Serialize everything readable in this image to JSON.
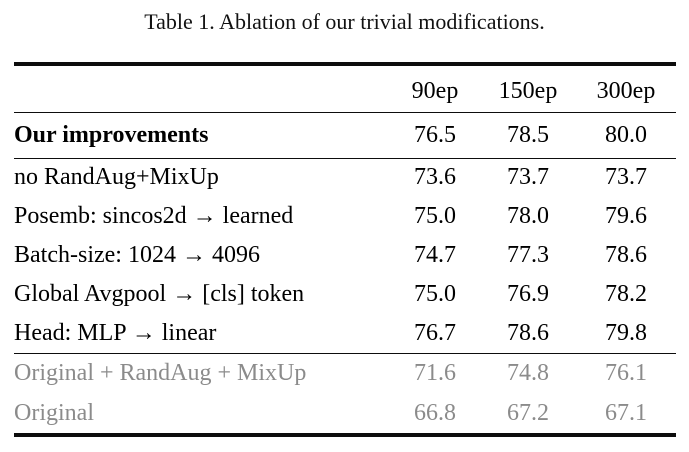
{
  "caption": "Table 1. Ablation of our trivial modifications.",
  "table": {
    "columns": [
      "90ep",
      "150ep",
      "300ep"
    ],
    "rows": [
      {
        "label": "Our improvements",
        "values": [
          "76.5",
          "78.5",
          "80.0"
        ],
        "emphasis": "bold"
      },
      {
        "label": "no RandAug+MixUp",
        "values": [
          "73.6",
          "73.7",
          "73.7"
        ],
        "emphasis": "normal"
      },
      {
        "label": "Posemb: sincos2d → learned",
        "values": [
          "75.0",
          "78.0",
          "79.6"
        ],
        "emphasis": "normal"
      },
      {
        "label": "Batch-size: 1024 → 4096",
        "values": [
          "74.7",
          "77.3",
          "78.6"
        ],
        "emphasis": "normal"
      },
      {
        "label": "Global Avgpool → [cls] token",
        "values": [
          "75.0",
          "76.9",
          "78.2"
        ],
        "emphasis": "normal"
      },
      {
        "label": "Head: MLP → linear",
        "values": [
          "76.7",
          "78.6",
          "79.8"
        ],
        "emphasis": "normal"
      },
      {
        "label": "Original + RandAug + MixUp",
        "values": [
          "71.6",
          "74.8",
          "76.1"
        ],
        "emphasis": "muted"
      },
      {
        "label": "Original",
        "values": [
          "66.8",
          "67.2",
          "67.1"
        ],
        "emphasis": "muted"
      }
    ],
    "colors": {
      "text": "#000000",
      "muted_text": "#8b8b8b",
      "rule": "#0d0d0d",
      "background": "#ffffff"
    }
  }
}
